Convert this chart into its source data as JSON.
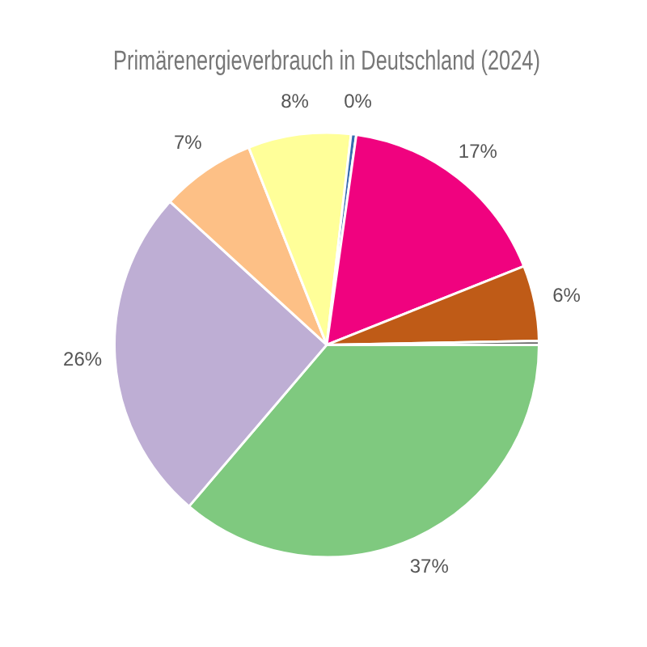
{
  "chart_data": {
    "type": "pie",
    "title": "Primärenergieverbrauch in Deutschland (2024)",
    "categories": [
      null,
      null,
      null,
      null,
      null,
      null,
      null,
      null
    ],
    "values": [
      36.6,
      25.8,
      7.3,
      7.9,
      0.4,
      16.9,
      5.8,
      0.3
    ],
    "colors": [
      "#7fc97f",
      "#beaed4",
      "#fdc086",
      "#ffff99",
      "#386cb0",
      "#f0027f",
      "#bf5b17",
      "#666666"
    ],
    "value_labels": [
      "37%",
      "26%",
      "7%",
      "8%",
      "0%",
      "17%",
      "6%",
      null
    ],
    "legend": false
  }
}
